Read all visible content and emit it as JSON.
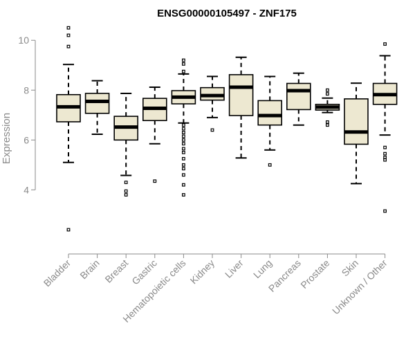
{
  "chart_data": {
    "type": "box",
    "title": "ENSG00000105497 - ZNF175",
    "xlabel": "",
    "ylabel": "Expression",
    "ylim": [
      1.9,
      10.7
    ],
    "yticks": [
      4,
      6,
      8,
      10
    ],
    "grid": false,
    "colors": {
      "box_fill": "#ede8d1",
      "stroke": "#000000",
      "axis": "#8a8a8a"
    },
    "categories": [
      "Bladder",
      "Brain",
      "Breast",
      "Gastric",
      "Hematopoietic cells",
      "Kidney",
      "Liver",
      "Lung",
      "Pancreas",
      "Prostate",
      "Skin",
      "Unknown / Other"
    ],
    "boxes": [
      {
        "name": "Bladder",
        "whisker_low": 5.1,
        "q1": 6.73,
        "median": 7.33,
        "q3": 7.82,
        "whisker_high": 9.03,
        "outliers": [
          2.4,
          9.75,
          10.2,
          10.5
        ]
      },
      {
        "name": "Brain",
        "whisker_low": 6.23,
        "q1": 7.07,
        "median": 7.55,
        "q3": 7.87,
        "whisker_high": 8.38,
        "outliers": []
      },
      {
        "name": "Breast",
        "whisker_low": 4.58,
        "q1": 6.0,
        "median": 6.52,
        "q3": 6.95,
        "whisker_high": 7.87,
        "outliers": [
          3.8,
          3.95,
          4.3
        ]
      },
      {
        "name": "Gastric",
        "whisker_low": 5.85,
        "q1": 6.78,
        "median": 7.27,
        "q3": 7.67,
        "whisker_high": 8.12,
        "outliers": [
          4.35
        ]
      },
      {
        "name": "Hematopoietic cells",
        "whisker_low": 6.68,
        "q1": 7.45,
        "median": 7.72,
        "q3": 7.98,
        "whisker_high": 8.65,
        "outliers": [
          3.8,
          4.2,
          4.6,
          4.85,
          5.0,
          5.25,
          5.5,
          5.65,
          5.85,
          6.0,
          6.15,
          6.3,
          6.45,
          6.6,
          8.75,
          9.05,
          9.2
        ]
      },
      {
        "name": "Kidney",
        "whisker_low": 6.9,
        "q1": 7.6,
        "median": 7.78,
        "q3": 8.1,
        "whisker_high": 8.55,
        "outliers": [
          6.4
        ]
      },
      {
        "name": "Liver",
        "whisker_low": 5.28,
        "q1": 6.98,
        "median": 8.12,
        "q3": 8.62,
        "whisker_high": 9.32,
        "outliers": []
      },
      {
        "name": "Lung",
        "whisker_low": 5.6,
        "q1": 6.6,
        "median": 6.98,
        "q3": 7.58,
        "whisker_high": 8.55,
        "outliers": [
          5.0
        ]
      },
      {
        "name": "Pancreas",
        "whisker_low": 6.6,
        "q1": 7.22,
        "median": 7.98,
        "q3": 8.27,
        "whisker_high": 8.68,
        "outliers": []
      },
      {
        "name": "Prostate",
        "whisker_low": 7.1,
        "q1": 7.2,
        "median": 7.32,
        "q3": 7.43,
        "whisker_high": 7.68,
        "outliers": [
          6.6,
          6.72,
          7.85,
          8.0
        ]
      },
      {
        "name": "Skin",
        "whisker_low": 4.25,
        "q1": 5.83,
        "median": 6.32,
        "q3": 7.65,
        "whisker_high": 8.28,
        "outliers": []
      },
      {
        "name": "Unknown / Other",
        "whisker_low": 6.2,
        "q1": 7.43,
        "median": 7.82,
        "q3": 8.27,
        "whisker_high": 9.38,
        "outliers": [
          3.15,
          5.2,
          5.3,
          5.45,
          5.7,
          9.85
        ]
      }
    ]
  }
}
